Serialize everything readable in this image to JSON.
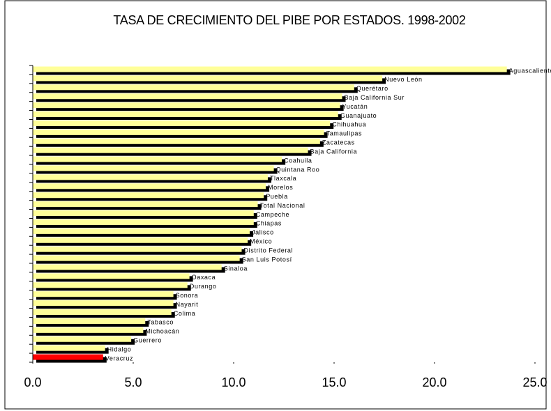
{
  "chart_data": {
    "type": "barh",
    "title": "TASA DE CRECIMIENTO DEL PIBE POR ESTADOS. 1998-2002",
    "categories": [
      "Aguascalientes",
      "Nuevo León",
      "Querétaro",
      "Baja California Sur",
      "Yucatán",
      "Guanajuato",
      "Chihuahua",
      "Tamaulipas",
      "Zacatecas",
      "Baja California",
      "Coahuila",
      "Quintana Roo",
      "Tlaxcala",
      "Morelos",
      "Puebla",
      "Total Nacional",
      "Campeche",
      "Chiapas",
      "Jalisco",
      "México",
      "Distrito Federal",
      "San Luis Potosí",
      "Sinaloa",
      "Oaxaca",
      "Durango",
      "Sonora",
      "Nayarit",
      "Colima",
      "Tabasco",
      "Michoacán",
      "Guerrero",
      "Hidalgo",
      "Veracruz"
    ],
    "values": [
      23.6,
      17.4,
      16.0,
      15.4,
      15.3,
      15.2,
      14.8,
      14.5,
      14.3,
      13.7,
      12.4,
      12.0,
      11.7,
      11.6,
      11.5,
      11.2,
      11.0,
      11.0,
      10.8,
      10.7,
      10.4,
      10.3,
      9.4,
      7.8,
      7.7,
      7.0,
      7.0,
      6.9,
      5.6,
      5.5,
      4.9,
      3.6,
      3.5
    ],
    "colors": [
      "#ffff99",
      "#ffff99",
      "#ffff99",
      "#ffff99",
      "#ffff99",
      "#ffff99",
      "#ffff99",
      "#ffff99",
      "#ffff99",
      "#ffff99",
      "#ffff99",
      "#ffff99",
      "#ffff99",
      "#ffff99",
      "#ffff99",
      "#ffff99",
      "#ffff99",
      "#ffff99",
      "#ffff99",
      "#ffff99",
      "#ffff99",
      "#ffff99",
      "#ffff99",
      "#ffff99",
      "#ffff99",
      "#ffff99",
      "#ffff99",
      "#ffff99",
      "#ffff99",
      "#ffff99",
      "#ffff99",
      "#ffff99",
      "#ff0000"
    ],
    "xlim": [
      0,
      25
    ],
    "xticks": [
      {
        "value": 0,
        "label": "0.0"
      },
      {
        "value": 5,
        "label": "5.0"
      },
      {
        "value": 10,
        "label": "10.0"
      },
      {
        "value": 15,
        "label": "15.0"
      },
      {
        "value": 20,
        "label": "20.0"
      },
      {
        "value": 25,
        "label": "25.0"
      }
    ]
  }
}
